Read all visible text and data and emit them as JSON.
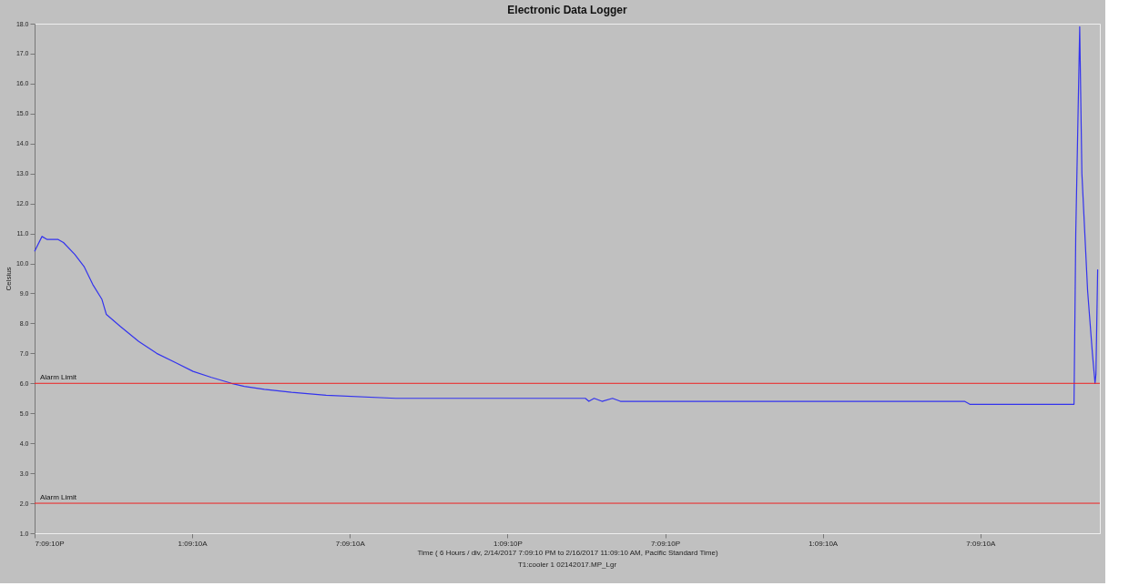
{
  "chart_data": {
    "type": "line",
    "title": "Electronic Data Logger",
    "xlabel": "Time ( 6 Hours / div, 2/14/2017 7:09:10 PM to 2/16/2017 11:09:10 AM, Pacific Standard Time)",
    "ylabel": "Celsius",
    "annotations": [
      "T1:cooler 1 02142017.MP_Lgr"
    ],
    "series": [
      {
        "color": "#3333ee",
        "x": [
          "2017-02-14T19:09:10",
          "2017-02-14T19:26",
          "2017-02-14T19:38",
          "2017-02-14T20:03",
          "2017-02-14T20:15",
          "2017-02-14T20:41",
          "2017-02-14T21:02",
          "2017-02-14T21:22",
          "2017-02-14T21:43",
          "2017-02-14T21:53",
          "2017-02-14T22:25",
          "2017-02-14T23:07",
          "2017-02-14T23:48",
          "2017-02-15T00:30",
          "2017-02-15T01:11",
          "2017-02-15T01:53",
          "2017-02-15T02:39",
          "2017-02-15T03:08",
          "2017-02-15T03:54",
          "2017-02-15T04:56",
          "2017-02-15T06:15",
          "2017-02-15T08:54",
          "2017-02-15T16:07",
          "2017-02-15T16:15",
          "2017-02-15T16:27",
          "2017-02-15T16:45",
          "2017-02-15T17:09",
          "2017-02-15T17:27",
          "2017-02-15T18:45",
          "2017-02-16T06:33",
          "2017-02-16T06:45",
          "2017-02-16T10:43",
          "2017-02-16T10:47",
          "2017-02-16T10:56",
          "2017-02-16T11:01",
          "2017-02-16T11:14",
          "2017-02-16T11:25",
          "2017-02-16T11:31",
          "2017-02-16T11:33",
          "2017-02-16T11:37"
        ],
        "values": [
          10.4,
          10.9,
          10.8,
          10.8,
          10.7,
          10.3,
          9.9,
          9.3,
          8.8,
          8.3,
          7.9,
          7.4,
          7.0,
          6.7,
          6.4,
          6.2,
          6.0,
          5.9,
          5.8,
          5.7,
          5.6,
          5.5,
          5.5,
          5.4,
          5.5,
          5.4,
          5.5,
          5.4,
          5.4,
          5.4,
          5.3,
          5.3,
          11.0,
          17.9,
          13.0,
          9.1,
          7.0,
          6.0,
          6.3,
          9.8
        ]
      }
    ],
    "xlim": [
      "2017-02-14T19:09:10",
      "2017-02-16T11:42"
    ],
    "xticks": [
      {
        "value": "2017-02-14T19:09:10",
        "label": "7:09:10P"
      },
      {
        "value": "2017-02-15T01:09:10",
        "label": "1:09:10A"
      },
      {
        "value": "2017-02-15T07:09:10",
        "label": "7:09:10A"
      },
      {
        "value": "2017-02-15T13:09:10",
        "label": "1:09:10P"
      },
      {
        "value": "2017-02-15T19:09:10",
        "label": "7:09:10P"
      },
      {
        "value": "2017-02-16T01:09:10",
        "label": "1:09:10A"
      },
      {
        "value": "2017-02-16T07:09:10",
        "label": "7:09:10A"
      }
    ],
    "ylim": [
      1,
      18
    ],
    "yticks": [
      {
        "value": 1,
        "label": "1.0"
      },
      {
        "value": 2,
        "label": "2.0"
      },
      {
        "value": 3,
        "label": "3.0"
      },
      {
        "value": 4,
        "label": "4.0"
      },
      {
        "value": 5,
        "label": "5.0"
      },
      {
        "value": 6,
        "label": "6.0"
      },
      {
        "value": 7,
        "label": "7.0"
      },
      {
        "value": 8,
        "label": "8.0"
      },
      {
        "value": 9,
        "label": "9.0"
      },
      {
        "value": 10,
        "label": "10.0"
      },
      {
        "value": 11,
        "label": "11.0"
      },
      {
        "value": 12,
        "label": "12.0"
      },
      {
        "value": 13,
        "label": "13.0"
      },
      {
        "value": 14,
        "label": "14.0"
      },
      {
        "value": 15,
        "label": "15.0"
      },
      {
        "value": 16,
        "label": "16.0"
      },
      {
        "value": 17,
        "label": "17.0"
      },
      {
        "value": 18,
        "label": "18.0"
      }
    ],
    "ref_lines": [
      {
        "axis": "y",
        "value": 6,
        "label": "Alarm Limit",
        "color": "#ee2222"
      },
      {
        "axis": "y",
        "value": 2,
        "label": "Alarm Limit",
        "color": "#ee2222"
      }
    ],
    "grid": false,
    "marker": "none",
    "line_style": "solid"
  }
}
